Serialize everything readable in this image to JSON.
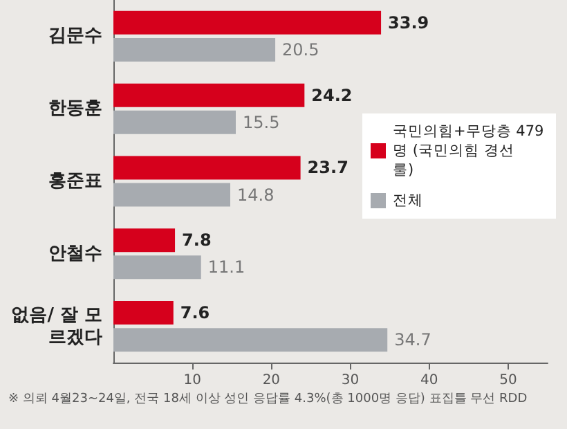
{
  "chart_data": {
    "type": "bar",
    "orientation": "horizontal",
    "categories": [
      "김문수",
      "한동훈",
      "홍준표",
      "안철수",
      "없음/ 잘 모르겠다"
    ],
    "series": [
      {
        "name": "국민의힘+무당층 479명 (국민의힘 경선 룰)",
        "color": "#d6001c",
        "values": [
          33.9,
          24.2,
          23.7,
          7.8,
          7.6
        ]
      },
      {
        "name": "전체",
        "color": "#a7abb0",
        "values": [
          20.5,
          15.5,
          14.8,
          11.1,
          34.7
        ]
      }
    ],
    "xlim": [
      0,
      55
    ],
    "xticks": [
      10,
      20,
      30,
      40,
      50
    ],
    "data_labels": true,
    "grid": false,
    "legend": "right",
    "annotations": [
      "※ 의뢰 4월23~24일, 전국 18세 이상 성인 응답률 4.3%(총 1000명 응답) 표집틀 무선 RDD"
    ]
  }
}
